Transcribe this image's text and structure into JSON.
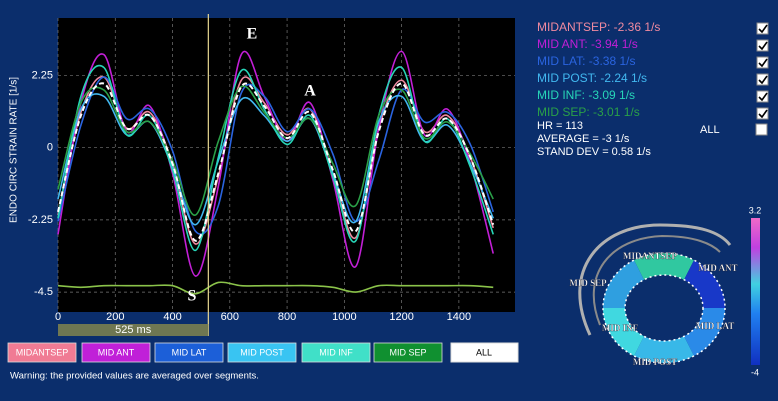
{
  "chart_data": {
    "type": "line",
    "y_label": "ENDO CIRC STRAIN RATE [1/s]",
    "x": [
      0,
      80,
      160,
      240,
      320,
      400,
      480,
      560,
      640,
      720,
      800,
      880,
      960,
      1040,
      1120,
      1200,
      1280,
      1360,
      1440,
      1520
    ],
    "series": [
      {
        "name": "MIDANTSEP",
        "color": "#f08aa0",
        "values": [
          -2.1,
          1.1,
          2.2,
          0.6,
          1.1,
          -0.5,
          -3.0,
          -0.9,
          2.1,
          1.4,
          0.4,
          1.2,
          -0.8,
          -2.8,
          0.6,
          2.1,
          0.5,
          1.0,
          -0.3,
          -2.5
        ]
      },
      {
        "name": "MID ANT",
        "color": "#c21fd6",
        "values": [
          -2.7,
          1.4,
          2.9,
          0.5,
          1.3,
          -0.8,
          -4.0,
          -1.2,
          2.9,
          1.6,
          0.2,
          1.4,
          -1.0,
          -3.7,
          0.6,
          3.0,
          0.4,
          1.2,
          -0.5,
          -3.3
        ]
      },
      {
        "name": "MID LAT",
        "color": "#2a64e0",
        "values": [
          -2.3,
          0.7,
          2.2,
          0.9,
          1.2,
          -0.1,
          -2.6,
          -1.8,
          1.7,
          1.6,
          0.5,
          1.2,
          -0.2,
          -2.3,
          -0.4,
          1.8,
          0.8,
          1.1,
          0.1,
          -2.0
        ]
      },
      {
        "name": "MID POST",
        "color": "#42b8f0",
        "values": [
          -1.6,
          1.2,
          1.6,
          0.4,
          0.8,
          -0.6,
          -2.4,
          -0.4,
          1.5,
          1.0,
          0.2,
          0.9,
          -0.8,
          -2.3,
          0.8,
          1.6,
          0.2,
          0.7,
          -0.5,
          -2.2
        ]
      },
      {
        "name": "MID INF",
        "color": "#27d6b8",
        "values": [
          -2.2,
          1.6,
          2.5,
          0.4,
          1.0,
          -0.7,
          -3.2,
          -0.3,
          2.4,
          1.2,
          0.1,
          1.0,
          -0.9,
          -2.9,
          1.0,
          2.5,
          0.2,
          0.9,
          -0.6,
          -2.7
        ]
      },
      {
        "name": "MID SEP",
        "color": "#2aa048",
        "values": [
          -1.3,
          1.4,
          1.8,
          0.5,
          0.8,
          -0.4,
          -2.1,
          0.2,
          1.9,
          1.1,
          0.3,
          0.9,
          -0.5,
          -1.8,
          1.0,
          1.8,
          0.3,
          0.8,
          -0.2,
          -1.6
        ]
      }
    ],
    "average": {
      "color": "#ffffff",
      "values": [
        -2.0,
        1.0,
        2.0,
        0.6,
        1.0,
        -0.5,
        -2.9,
        -0.8,
        1.9,
        1.3,
        0.3,
        1.1,
        -0.7,
        -2.6,
        0.5,
        2.0,
        0.4,
        0.9,
        -0.3,
        -2.4
      ]
    },
    "ecg": {
      "color": "#8bc34a",
      "values": [
        -4.3,
        -4.35,
        -4.3,
        -4.3,
        -4.3,
        -4.3,
        -4.55,
        -4.2,
        -4.3,
        -4.3,
        -4.3,
        -4.3,
        -4.35,
        -4.5,
        -4.3,
        -4.3,
        -4.3,
        -4.3,
        -4.3,
        -4.35
      ]
    },
    "xlim": [
      0,
      1596
    ],
    "ylim": [
      -5.12,
      4.04
    ],
    "xticks": [
      0,
      200,
      400,
      600,
      800,
      1000,
      1200,
      1400
    ],
    "yticks": [
      2.25,
      0,
      -2.25,
      -4.5
    ],
    "grid": true,
    "annotations": [
      "E",
      "A",
      "S"
    ],
    "interval": {
      "value": 525,
      "label": "525 ms"
    }
  },
  "panel": {
    "readouts": [
      "MIDANTSEP: -2.36  1/s",
      "MID ANT: -3.94  1/s",
      "MID LAT: -3.38  1/s",
      "MID POST: -2.24  1/s",
      "MID INF: -3.09  1/s",
      "MID SEP: -3.01  1/s"
    ],
    "checked": [
      true,
      true,
      true,
      true,
      true,
      true
    ],
    "stats": [
      "HR = 113",
      "AVERAGE = -3 1/s",
      "STAND DEV = 0.58 1/s"
    ],
    "all_label": "ALL",
    "all_checked": false
  },
  "buttons": {
    "all": "ALL"
  },
  "warning": "Warning: the provided values are averaged over segments.",
  "bullseye": {
    "max": 3.2,
    "min": -4
  }
}
